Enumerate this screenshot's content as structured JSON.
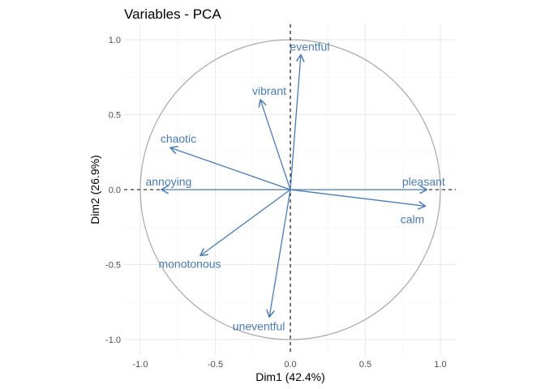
{
  "chart_data": {
    "type": "scatter",
    "title": "Variables - PCA",
    "xlabel": "Dim1 (42.4%)",
    "ylabel": "Dim2 (26.9%)",
    "xlim": [
      -1.1,
      1.1
    ],
    "ylim": [
      -1.1,
      1.1
    ],
    "xticks": [
      -1.0,
      -0.5,
      0.0,
      0.5,
      1.0
    ],
    "xtick_labels": [
      "-1.0",
      "-0.5",
      "0.0",
      "0.5",
      "1.0"
    ],
    "yticks": [
      -1.0,
      -0.5,
      0.0,
      0.5,
      1.0
    ],
    "ytick_labels": [
      "-1.0",
      "-0.5",
      "0.0",
      "0.5",
      "1.0"
    ],
    "grid": true,
    "reference_lines": {
      "x": 0,
      "y": 0,
      "style": "dashed"
    },
    "circle": {
      "center": [
        0,
        0
      ],
      "radius": 1,
      "color": "#a8a8a8"
    },
    "arrow_color": "#4a7bb0",
    "variables": [
      {
        "name": "eventful",
        "x": 0.07,
        "y": 0.9
      },
      {
        "name": "vibrant",
        "x": -0.2,
        "y": 0.6
      },
      {
        "name": "chaotic",
        "x": -0.8,
        "y": 0.28
      },
      {
        "name": "annoying",
        "x": -0.86,
        "y": 0.0
      },
      {
        "name": "pleasant",
        "x": 0.91,
        "y": 0.0
      },
      {
        "name": "calm",
        "x": 0.9,
        "y": -0.11
      },
      {
        "name": "monotonous",
        "x": -0.6,
        "y": -0.44
      },
      {
        "name": "uneventful",
        "x": -0.14,
        "y": -0.85
      }
    ]
  }
}
